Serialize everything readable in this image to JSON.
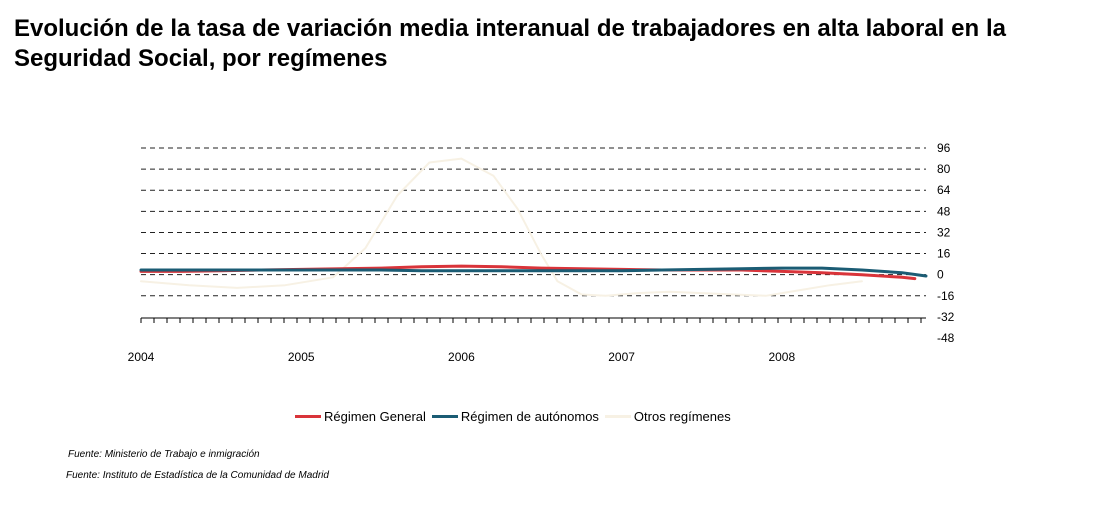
{
  "title": "Evolución de la tasa de variación media interanual de trabajadores en alta laboral en la Seguridad Social, por  regímenes",
  "sources": [
    "Fuente: Ministerio de Trabajo e inmigración",
    "Fuente: Instituto de Estadística de la Comunidad de Madrid"
  ],
  "chart_data": {
    "type": "line",
    "title": "Evolución de la tasa de variación media interanual de trabajadores en alta laboral en la Seguridad Social, por  regímenes",
    "xlabel": "",
    "ylabel": "",
    "x_ticks": [
      "2004",
      "2005",
      "2006",
      "2007",
      "2008"
    ],
    "y_ticks": [
      96,
      80,
      64,
      48,
      32,
      16,
      0,
      -16,
      -32,
      -48
    ],
    "ylim": [
      -48,
      96
    ],
    "xlim": [
      2004,
      2008.9
    ],
    "y_axis_side": "right",
    "grid": "horizontal-dashed",
    "legend_position": "bottom",
    "series": [
      {
        "name": "Régimen General",
        "color": "#d9343a",
        "x": [
          2004.0,
          2004.25,
          2004.5,
          2004.75,
          2005.0,
          2005.25,
          2005.5,
          2005.75,
          2006.0,
          2006.25,
          2006.5,
          2006.75,
          2007.0,
          2007.25,
          2007.5,
          2007.75,
          2008.0,
          2008.25,
          2008.5,
          2008.75,
          2008.83
        ],
        "values": [
          2.5,
          2.5,
          3.0,
          3.5,
          4.0,
          4.5,
          5.0,
          6.0,
          6.5,
          6.0,
          5.0,
          4.5,
          4.0,
          3.5,
          3.5,
          3.5,
          2.5,
          1.5,
          0.0,
          -2.0,
          -3.0
        ]
      },
      {
        "name": "Régimen de autónomos",
        "color": "#1b5c74",
        "x": [
          2004.0,
          2004.25,
          2004.5,
          2004.75,
          2005.0,
          2005.25,
          2005.5,
          2005.75,
          2006.0,
          2006.25,
          2006.5,
          2006.75,
          2007.0,
          2007.25,
          2007.5,
          2007.75,
          2008.0,
          2008.25,
          2008.5,
          2008.75,
          2008.9
        ],
        "values": [
          3.5,
          3.5,
          3.5,
          3.5,
          3.5,
          3.5,
          3.5,
          3.0,
          3.0,
          3.0,
          3.0,
          3.0,
          3.0,
          3.5,
          4.0,
          4.5,
          5.0,
          5.0,
          3.5,
          1.5,
          -1.0
        ]
      },
      {
        "name": "Otros regímenes",
        "color": "#f7f1e4",
        "x": [
          2004.0,
          2004.3,
          2004.6,
          2004.9,
          2005.2,
          2005.4,
          2005.6,
          2005.8,
          2006.0,
          2006.2,
          2006.35,
          2006.5,
          2006.6,
          2006.75,
          2006.9,
          2007.1,
          2007.3,
          2007.5,
          2007.7,
          2007.9,
          2008.1,
          2008.3,
          2008.5
        ],
        "values": [
          -5,
          -8,
          -10,
          -8,
          -2,
          20,
          60,
          85,
          88,
          75,
          50,
          15,
          -5,
          -15,
          -16,
          -14,
          -13,
          -14,
          -15,
          -16,
          -12,
          -8,
          -5
        ]
      }
    ]
  }
}
